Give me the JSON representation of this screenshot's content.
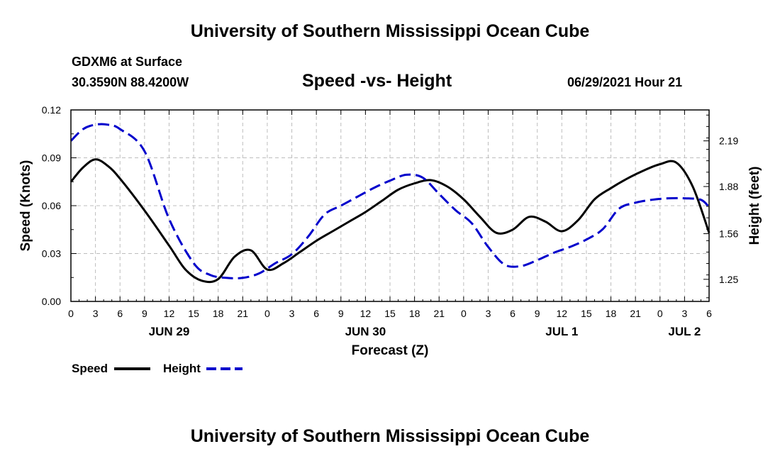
{
  "header": {
    "title": "University of Southern Mississippi Ocean Cube",
    "station": "GDXM6 at Surface",
    "coords": "30.3590N  88.4200W",
    "plot_title": "Speed -vs- Height",
    "datetime": "06/29/2021 Hour 21"
  },
  "footer": {
    "title": "University of Southern Mississippi Ocean Cube"
  },
  "chart_data": {
    "type": "line",
    "title": "Speed -vs- Height",
    "xlabel": "Forecast (Z)",
    "ylabel": "Speed (Knots)",
    "y2label": "Height (feet)",
    "x_hour_range": [
      0,
      78
    ],
    "ylim": [
      0,
      0.12
    ],
    "y2lim": [
      1.1,
      2.4
    ],
    "yticks": [
      "0.00",
      "0.03",
      "0.06",
      "0.09",
      "0.12"
    ],
    "y2ticks": [
      "1.25",
      "1.56",
      "1.88",
      "2.19"
    ],
    "y2tick_values": [
      1.25,
      1.56,
      1.88,
      2.19
    ],
    "xtick_labels": [
      "0",
      "3",
      "6",
      "9",
      "12",
      "15",
      "18",
      "21",
      "0",
      "3",
      "6",
      "9",
      "12",
      "15",
      "18",
      "21",
      "0",
      "3",
      "6",
      "9",
      "12",
      "15",
      "18",
      "21",
      "0",
      "3",
      "6"
    ],
    "day_labels": [
      {
        "label": "JUN 29",
        "hour": 12
      },
      {
        "label": "JUN 30",
        "hour": 36
      },
      {
        "label": "JUL 1",
        "hour": 60
      },
      {
        "label": "JUL 2",
        "hour": 75
      }
    ],
    "grid": true,
    "legend_position": "bottom-left",
    "series": [
      {
        "name": "Speed",
        "axis": "left",
        "color": "#000000",
        "dash": "solid",
        "x": [
          0,
          1.5,
          3,
          4.5,
          6,
          9,
          12,
          14,
          16,
          18,
          20,
          22,
          24,
          26,
          28,
          30,
          32,
          34,
          36,
          38,
          40,
          42,
          44,
          46,
          48,
          50,
          52,
          54,
          56,
          58,
          60,
          62,
          64,
          66,
          68,
          70,
          72,
          74,
          76,
          78
        ],
        "values": [
          0.075,
          0.084,
          0.089,
          0.085,
          0.077,
          0.057,
          0.035,
          0.02,
          0.013,
          0.014,
          0.028,
          0.032,
          0.02,
          0.024,
          0.031,
          0.038,
          0.044,
          0.05,
          0.056,
          0.063,
          0.07,
          0.074,
          0.076,
          0.072,
          0.064,
          0.053,
          0.043,
          0.045,
          0.053,
          0.05,
          0.044,
          0.051,
          0.064,
          0.071,
          0.077,
          0.082,
          0.086,
          0.087,
          0.072,
          0.043
        ]
      },
      {
        "name": "Height",
        "axis": "right",
        "color": "#0000cc",
        "dash": "dashed",
        "x": [
          0,
          1.5,
          3,
          4.5,
          6,
          9,
          12,
          15,
          17,
          19,
          21,
          23,
          25,
          27,
          29,
          31,
          33,
          35,
          37,
          39,
          41,
          43,
          45,
          47,
          49,
          51,
          53,
          55,
          57,
          59,
          61,
          63,
          65,
          67,
          69,
          71,
          73,
          75,
          77,
          78
        ],
        "values": [
          2.19,
          2.27,
          2.3,
          2.3,
          2.27,
          2.12,
          1.66,
          1.36,
          1.28,
          1.26,
          1.26,
          1.29,
          1.36,
          1.42,
          1.54,
          1.69,
          1.75,
          1.81,
          1.87,
          1.92,
          1.96,
          1.94,
          1.83,
          1.72,
          1.63,
          1.47,
          1.35,
          1.34,
          1.38,
          1.43,
          1.47,
          1.52,
          1.59,
          1.73,
          1.77,
          1.79,
          1.8,
          1.8,
          1.79,
          1.74
        ]
      }
    ]
  }
}
